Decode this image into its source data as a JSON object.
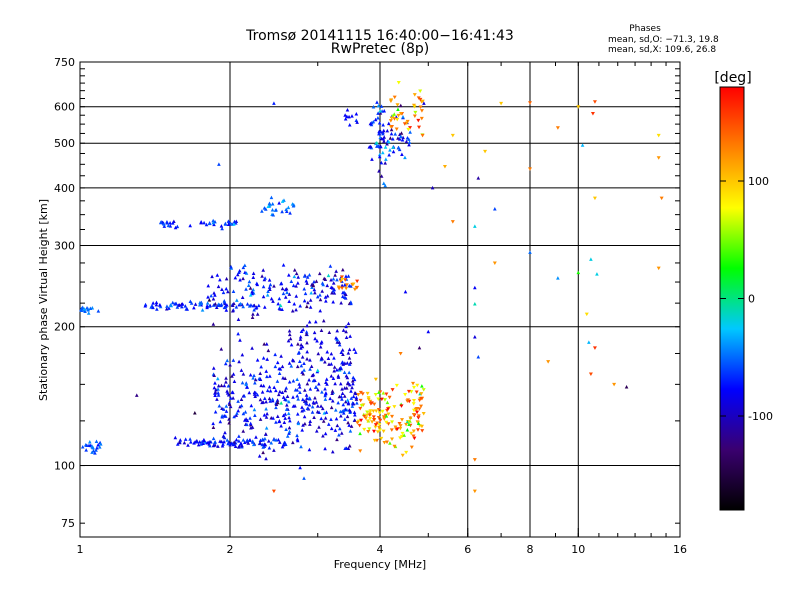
{
  "chart_data": {
    "type": "scatter",
    "title": "Tromsø 20141115 16:40:00−16:41:43",
    "subtitle": "RwPretec (8p)",
    "xlabel": "Frequency [MHz]",
    "ylabel": "Stationary phase Virtual Height [km]",
    "x_scale": "log",
    "y_scale": "log",
    "xlim": [
      1,
      16
    ],
    "ylim": [
      70,
      750
    ],
    "x_ticks": [
      1,
      2,
      4,
      6,
      8,
      10,
      16
    ],
    "y_ticks": [
      75,
      100,
      200,
      300,
      400,
      500,
      600,
      750
    ],
    "x_grid": [
      2,
      4,
      6,
      8,
      10
    ],
    "y_grid": [
      100,
      200,
      300,
      400,
      500,
      600
    ],
    "grid": true,
    "info": {
      "heading": "Phases",
      "line1": "mean, sd,O: −71.3, 19.8",
      "line2": "mean, sd,X: 109.6, 26.8"
    },
    "colorbar": {
      "label": "[deg]",
      "range": [
        -180,
        180
      ],
      "ticks": [
        100,
        0,
        -100
      ],
      "colors": [
        "#000000",
        "#3a0070",
        "#0000ff",
        "#00c8ff",
        "#00ff00",
        "#ffff00",
        "#ff8000",
        "#ff0000"
      ]
    },
    "point_clouds": [
      {
        "fmin": 1.0,
        "fmax": 1.12,
        "h": 110,
        "sd": 0.018,
        "n": 20,
        "phase": -55,
        "psd": 12
      },
      {
        "fmin": 1.55,
        "fmax": 2.6,
        "h": 112,
        "sd": 0.012,
        "n": 90,
        "phase": -75,
        "psd": 15
      },
      {
        "fmin": 1.85,
        "fmax": 3.6,
        "h": 140,
        "sd": 0.12,
        "n": 420,
        "phase": -80,
        "psd": 20
      },
      {
        "fmin": 3.6,
        "fmax": 4.9,
        "h": 128,
        "sd": 0.08,
        "n": 160,
        "phase": 110,
        "psd": 40
      },
      {
        "fmin": 2.6,
        "fmax": 3.5,
        "h": 180,
        "sd": 0.08,
        "n": 60,
        "phase": -90,
        "psd": 15
      },
      {
        "fmin": 1.0,
        "fmax": 1.1,
        "h": 218,
        "sd": 0.01,
        "n": 14,
        "phase": -50,
        "psd": 10
      },
      {
        "fmin": 1.35,
        "fmax": 2.3,
        "h": 222,
        "sd": 0.01,
        "n": 70,
        "phase": -70,
        "psd": 15
      },
      {
        "fmin": 1.8,
        "fmax": 3.5,
        "h": 240,
        "sd": 0.06,
        "n": 180,
        "phase": -80,
        "psd": 20
      },
      {
        "fmin": 3.3,
        "fmax": 3.7,
        "h": 245,
        "sd": 0.02,
        "n": 15,
        "phase": 120,
        "psd": 25
      },
      {
        "fmin": 1.45,
        "fmax": 2.1,
        "h": 335,
        "sd": 0.01,
        "n": 40,
        "phase": -70,
        "psd": 15
      },
      {
        "fmin": 2.3,
        "fmax": 2.7,
        "h": 360,
        "sd": 0.025,
        "n": 25,
        "phase": -50,
        "psd": 12
      },
      {
        "fmin": 3.8,
        "fmax": 4.6,
        "h": 520,
        "sd": 0.08,
        "n": 90,
        "phase": -75,
        "psd": 25
      },
      {
        "fmin": 4.2,
        "fmax": 4.9,
        "h": 560,
        "sd": 0.07,
        "n": 40,
        "phase": 110,
        "psd": 35
      },
      {
        "fmin": 3.4,
        "fmax": 3.6,
        "h": 570,
        "sd": 0.02,
        "n": 10,
        "phase": -80,
        "psd": 10
      }
    ],
    "scattered_points": [
      {
        "f": 2.45,
        "h": 88,
        "phase": 150
      },
      {
        "f": 6.2,
        "h": 88,
        "phase": 120
      },
      {
        "f": 6.2,
        "h": 103,
        "phase": 130
      },
      {
        "f": 6.3,
        "h": 172,
        "phase": -60
      },
      {
        "f": 6.2,
        "h": 190,
        "phase": -90
      },
      {
        "f": 6.2,
        "h": 243,
        "phase": -80
      },
      {
        "f": 6.2,
        "h": 224,
        "phase": -10
      },
      {
        "f": 6.2,
        "h": 330,
        "phase": -20
      },
      {
        "f": 6.3,
        "h": 420,
        "phase": -110
      },
      {
        "f": 6.5,
        "h": 480,
        "phase": 100
      },
      {
        "f": 6.8,
        "h": 360,
        "phase": -60
      },
      {
        "f": 6.8,
        "h": 275,
        "phase": 120
      },
      {
        "f": 7.0,
        "h": 610,
        "phase": 100
      },
      {
        "f": 8.0,
        "h": 612,
        "phase": 140
      },
      {
        "f": 8.0,
        "h": 440,
        "phase": 130
      },
      {
        "f": 8.0,
        "h": 290,
        "phase": -50
      },
      {
        "f": 9.1,
        "h": 540,
        "phase": 130
      },
      {
        "f": 9.1,
        "h": 255,
        "phase": -40
      },
      {
        "f": 8.7,
        "h": 168,
        "phase": 120
      },
      {
        "f": 10.0,
        "h": 600,
        "phase": 100
      },
      {
        "f": 10.2,
        "h": 495,
        "phase": -30
      },
      {
        "f": 10.0,
        "h": 262,
        "phase": 30
      },
      {
        "f": 10.5,
        "h": 185,
        "phase": -30
      },
      {
        "f": 10.8,
        "h": 615,
        "phase": 150
      },
      {
        "f": 10.7,
        "h": 580,
        "phase": 160
      },
      {
        "f": 10.8,
        "h": 380,
        "phase": 100
      },
      {
        "f": 10.6,
        "h": 280,
        "phase": -20
      },
      {
        "f": 10.9,
        "h": 260,
        "phase": -20
      },
      {
        "f": 10.4,
        "h": 213,
        "phase": 90
      },
      {
        "f": 10.8,
        "h": 180,
        "phase": 160
      },
      {
        "f": 10.6,
        "h": 158,
        "phase": 150
      },
      {
        "f": 12.5,
        "h": 148,
        "phase": -140
      },
      {
        "f": 11.8,
        "h": 150,
        "phase": 120
      },
      {
        "f": 14.5,
        "h": 520,
        "phase": 90
      },
      {
        "f": 14.5,
        "h": 465,
        "phase": 120
      },
      {
        "f": 14.7,
        "h": 380,
        "phase": 130
      },
      {
        "f": 14.5,
        "h": 268,
        "phase": 120
      },
      {
        "f": 5.4,
        "h": 445,
        "phase": 110
      },
      {
        "f": 5.6,
        "h": 338,
        "phase": 130
      },
      {
        "f": 5.1,
        "h": 400,
        "phase": -100
      },
      {
        "f": 4.5,
        "h": 238,
        "phase": -80
      },
      {
        "f": 4.4,
        "h": 175,
        "phase": 130
      },
      {
        "f": 4.8,
        "h": 180,
        "phase": -130
      },
      {
        "f": 5.0,
        "h": 195,
        "phase": -80
      },
      {
        "f": 1.7,
        "h": 130,
        "phase": -150
      },
      {
        "f": 1.3,
        "h": 142,
        "phase": -120
      },
      {
        "f": 1.9,
        "h": 450,
        "phase": -60
      },
      {
        "f": 2.45,
        "h": 610,
        "phase": -70
      },
      {
        "f": 4.9,
        "h": 610,
        "phase": -90
      },
      {
        "f": 5.6,
        "h": 520,
        "phase": 100
      }
    ]
  }
}
